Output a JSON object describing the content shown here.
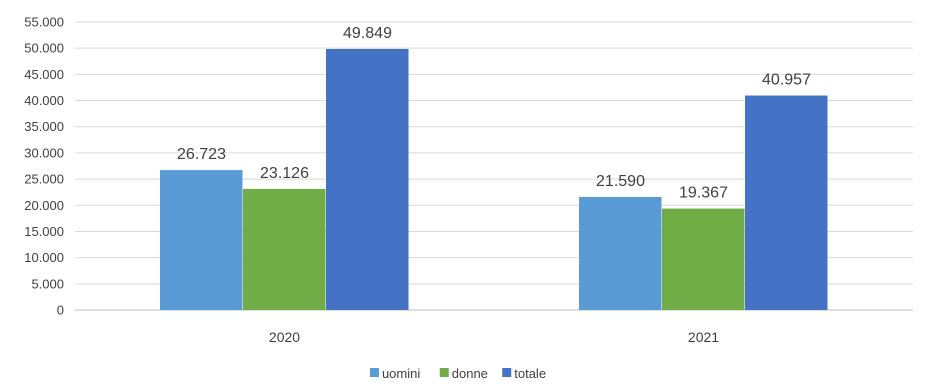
{
  "chart_data": {
    "type": "bar",
    "categories": [
      "2020",
      "2021"
    ],
    "series": [
      {
        "name": "uomini",
        "values": [
          26723,
          21590
        ],
        "labels": [
          "26.723",
          "21.590"
        ],
        "color": "#5b9bd5"
      },
      {
        "name": "donne",
        "values": [
          23126,
          19367
        ],
        "labels": [
          "23.126",
          "19.367"
        ],
        "color": "#70ad47"
      },
      {
        "name": "totale",
        "values": [
          49849,
          40957
        ],
        "labels": [
          "49.849",
          "40.957"
        ],
        "color": "#4472c4"
      }
    ],
    "ylim": [
      0,
      55000
    ],
    "yticks": [
      0,
      5000,
      10000,
      15000,
      20000,
      25000,
      30000,
      35000,
      40000,
      45000,
      50000,
      55000
    ],
    "ytick_labels": [
      "0",
      "5.000",
      "10.000",
      "15.000",
      "20.000",
      "25.000",
      "30.000",
      "35.000",
      "40.000",
      "45.000",
      "50.000",
      "55.000"
    ],
    "grid": true,
    "legend_position": "bottom"
  }
}
